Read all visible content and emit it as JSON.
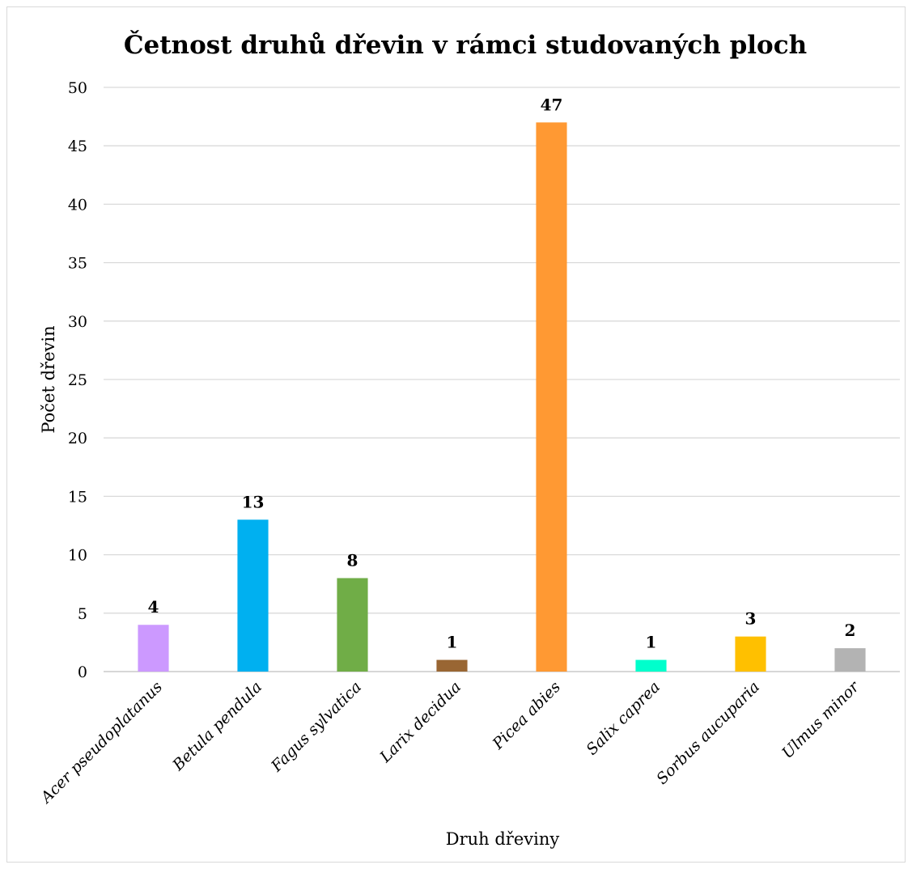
{
  "chart_data": {
    "type": "bar",
    "title": "Četnost druhů dřevin v rámci studovaných ploch",
    "xlabel": "Druh dřeviny",
    "ylabel": "Počet dřevin",
    "ylim": [
      0,
      50
    ],
    "yticks": [
      0,
      5,
      10,
      15,
      20,
      25,
      30,
      35,
      40,
      45,
      50
    ],
    "grid": true,
    "legend": "none",
    "categories": [
      "Acer pseudoplatanus",
      "Betula pendula",
      "Fagus sylvatica",
      "Larix decidua",
      "Picea abies",
      "Salix caprea",
      "Sorbus aucuparia",
      "Ulmus minor"
    ],
    "values": [
      4,
      13,
      8,
      1,
      47,
      1,
      3,
      2
    ],
    "colors": [
      "#cc99ff",
      "#00b0f0",
      "#70ad47",
      "#996633",
      "#ff9933",
      "#00ffcc",
      "#ffc000",
      "#b3b3b3"
    ]
  }
}
